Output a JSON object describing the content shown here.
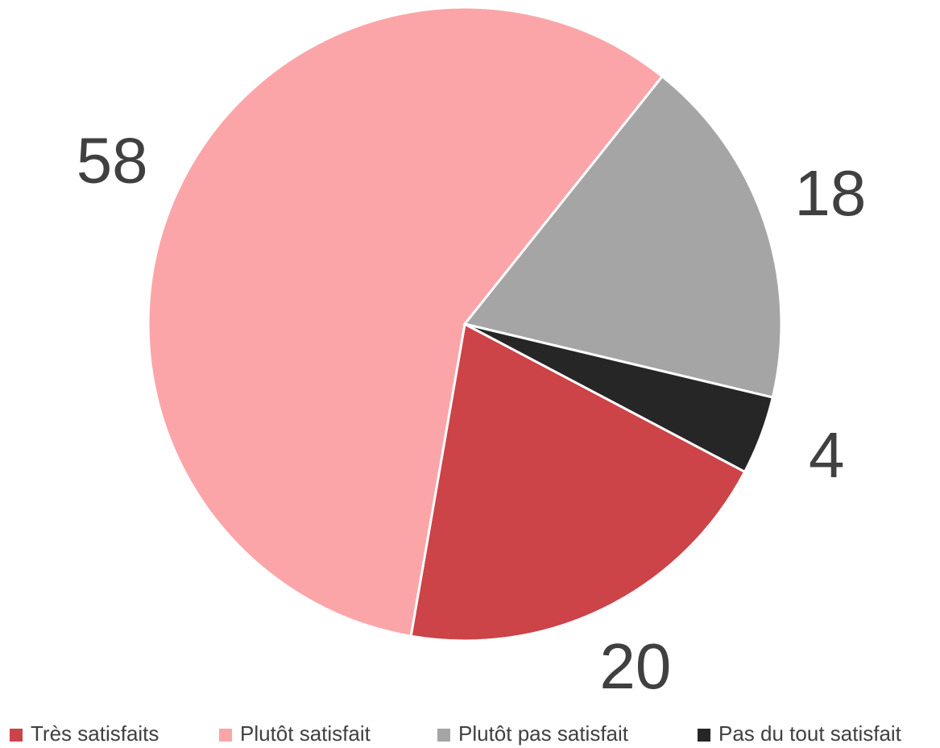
{
  "chart_data": {
    "type": "pie",
    "categories": [
      "Très satisfaits",
      "Plutôt satisfait",
      "Plutôt pas satisfait",
      "Pas du tout satisfait"
    ],
    "values": [
      20,
      58,
      18,
      4
    ],
    "colors": [
      "#cc4348",
      "#fca5a9",
      "#a5a5a5",
      "#262626"
    ],
    "legend": "bottom"
  }
}
